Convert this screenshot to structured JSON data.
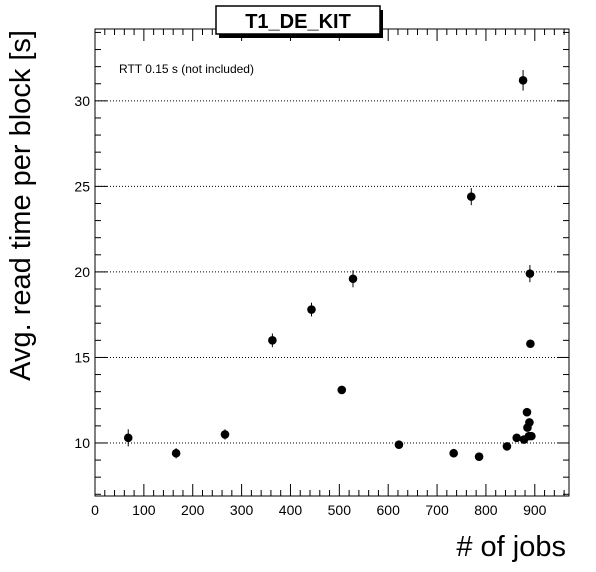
{
  "chart_data": {
    "type": "scatter",
    "title": "T1_DE_KIT",
    "xlabel": "# of jobs",
    "ylabel": "Avg. read time per block [s]",
    "annotation": "RTT 0.15 s (not included)",
    "xlim": [
      0,
      970
    ],
    "ylim": [
      6.9,
      34.2
    ],
    "x_ticks": [
      0,
      100,
      200,
      300,
      400,
      500,
      600,
      700,
      800,
      900
    ],
    "y_ticks": [
      10,
      15,
      20,
      25,
      30
    ],
    "grid": "horizontal dotted at major y ticks",
    "marker_color": "#000000",
    "points": [
      {
        "x": 68,
        "y": 10.3,
        "err": 0.5
      },
      {
        "x": 166,
        "y": 9.4,
        "err": 0.3
      },
      {
        "x": 266,
        "y": 10.5,
        "err": 0.3
      },
      {
        "x": 363,
        "y": 16.0,
        "err": 0.4
      },
      {
        "x": 443,
        "y": 17.8,
        "err": 0.4
      },
      {
        "x": 505,
        "y": 13.1,
        "err": 0.2
      },
      {
        "x": 528,
        "y": 19.6,
        "err": 0.5
      },
      {
        "x": 622,
        "y": 9.9,
        "err": 0.2
      },
      {
        "x": 734,
        "y": 9.4,
        "err": 0.2
      },
      {
        "x": 770,
        "y": 24.4,
        "err": 0.5
      },
      {
        "x": 786,
        "y": 9.2,
        "err": 0.2
      },
      {
        "x": 843,
        "y": 9.8,
        "err": 0.2
      },
      {
        "x": 863,
        "y": 10.3,
        "err": 0.2
      },
      {
        "x": 876,
        "y": 31.2,
        "err": 0.6
      },
      {
        "x": 878,
        "y": 10.2,
        "err": 0.2
      },
      {
        "x": 884,
        "y": 11.8,
        "err": 0.2
      },
      {
        "x": 885,
        "y": 10.9,
        "err": 0.2
      },
      {
        "x": 888,
        "y": 10.4,
        "err": 0.2
      },
      {
        "x": 889,
        "y": 11.2,
        "err": 0.2
      },
      {
        "x": 890,
        "y": 19.9,
        "err": 0.5
      },
      {
        "x": 891,
        "y": 15.8,
        "err": 0.2
      },
      {
        "x": 893,
        "y": 10.4,
        "err": 0.2
      }
    ]
  }
}
